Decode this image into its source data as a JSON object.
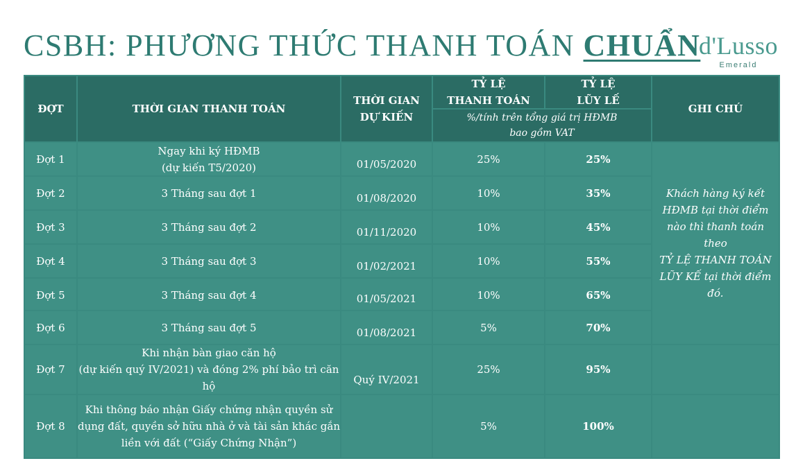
{
  "title": {
    "prefix": "CSBH: PHƯƠNG THỨC THANH TOÁN ",
    "accent": "CHUẨN"
  },
  "logo": {
    "brand": "d'Lusso",
    "sub": "Emerald"
  },
  "colors": {
    "title": "#2e7b72",
    "header_bg": "#2b6c64",
    "row_bg": "#3f9085",
    "grid": "#3a8a80"
  },
  "table": {
    "headers": {
      "dot": "ĐỢT",
      "time": "THỜI GIAN THANH TOÁN",
      "expected_line1": "THỜI GIAN",
      "expected_line2": "DỰ KIẾN",
      "rate_line1": "TỶ LỆ",
      "rate_line2": "THANH TOÁN",
      "cum_line1": "TỶ LỆ",
      "cum_line2": "LŨY LẾ",
      "percent_note_line1": "%/tính trên tổng giá trị HĐMB",
      "percent_note_line2": "bao gồm VAT",
      "note": "GHI CHÚ"
    },
    "rows": [
      {
        "dot": "Đợt 1",
        "time": "Ngay khi ký HĐMB\n(dự kiến T5/2020)",
        "expected": "01/05/2020",
        "rate": "25%",
        "cumulative": "25%"
      },
      {
        "dot": "Đợt 2",
        "time": "3 Tháng sau đợt 1",
        "expected": "01/08/2020",
        "rate": "10%",
        "cumulative": "35%"
      },
      {
        "dot": "Đợt 3",
        "time": "3 Tháng sau đợt 2",
        "expected": "01/11/2020",
        "rate": "10%",
        "cumulative": "45%"
      },
      {
        "dot": "Đợt 4",
        "time": "3 Tháng sau đợt 3",
        "expected": "01/02/2021",
        "rate": "10%",
        "cumulative": "55%"
      },
      {
        "dot": "Đợt 5",
        "time": "3 Tháng sau đợt 4",
        "expected": "01/05/2021",
        "rate": "10%",
        "cumulative": "65%"
      },
      {
        "dot": "Đợt 6",
        "time": "3 Tháng sau đợt 5",
        "expected": "01/08/2021",
        "rate": "5%",
        "cumulative": "70%"
      },
      {
        "dot": "Đợt 7",
        "time": "Khi nhận bàn giao căn hộ\n(dự kiến quý IV/2021) và đóng 2% phí bảo trì căn\nhộ",
        "expected": "Quý IV/2021",
        "rate": "25%",
        "cumulative": "95%"
      },
      {
        "dot": "Đợt 8",
        "time": "Khi thông báo nhận Giấy chứng nhận quyền sử\ndụng đất, quyền sở hữu nhà ở và tài sản khác gắn\nliền với đất (“Giấy Chứng Nhận”)",
        "expected": "",
        "rate": "5%",
        "cumulative": "100%"
      }
    ],
    "note_text": "Khách hàng ký kết\nHĐMB tại thời điểm\nnào thì thanh toán theo\nTỶ LỆ THANH TOÁN\nLŨY KẾ tại thời điểm\nđó."
  }
}
